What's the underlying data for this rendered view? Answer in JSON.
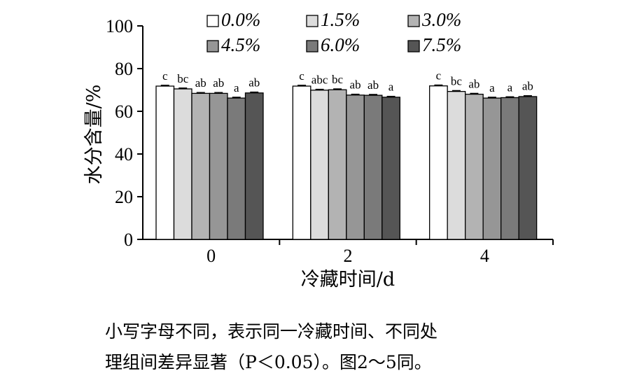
{
  "chart_data": {
    "type": "bar",
    "categories": [
      "0",
      "2",
      "4"
    ],
    "xlabel": "冷藏时间/d",
    "ylabel": "水分含量/%",
    "ylim": [
      0,
      100
    ],
    "yticks": [
      "0",
      "20",
      "40",
      "60",
      "80",
      "100"
    ],
    "legend_position": "top",
    "series": [
      {
        "name": "0.0%",
        "color": "#ffffff",
        "values": [
          71.8,
          71.8,
          71.9
        ],
        "errors": [
          0.4,
          0.4,
          0.4
        ],
        "sig": [
          "c",
          "c",
          "c"
        ]
      },
      {
        "name": "1.5%",
        "color": "#dcdcdc",
        "values": [
          70.5,
          69.9,
          69.3
        ],
        "errors": [
          0.4,
          0.4,
          0.4
        ],
        "sig": [
          "bc",
          "abc",
          "bc"
        ]
      },
      {
        "name": "3.0%",
        "color": "#b3b3b3",
        "values": [
          68.4,
          70.1,
          68.0
        ],
        "errors": [
          0.4,
          0.4,
          0.4
        ],
        "sig": [
          "ab",
          "bc",
          "ab"
        ]
      },
      {
        "name": "4.5%",
        "color": "#969696",
        "values": [
          68.4,
          67.6,
          66.2
        ],
        "errors": [
          0.4,
          0.4,
          0.4
        ],
        "sig": [
          "ab",
          "ab",
          "a"
        ]
      },
      {
        "name": "6.0%",
        "color": "#7a7a7a",
        "values": [
          66.2,
          67.5,
          66.4
        ],
        "errors": [
          0.4,
          0.4,
          0.4
        ],
        "sig": [
          "a",
          "ab",
          "a"
        ]
      },
      {
        "name": "7.5%",
        "color": "#555555",
        "values": [
          68.6,
          66.6,
          66.9
        ],
        "errors": [
          0.4,
          0.4,
          0.4
        ],
        "sig": [
          "ab",
          "a",
          "ab"
        ]
      }
    ]
  },
  "caption": {
    "line1": "小写字母不同，表示同一冷藏时间、不同处",
    "line2": "理组间差异显著（P＜0.05）。图2～5同。"
  }
}
